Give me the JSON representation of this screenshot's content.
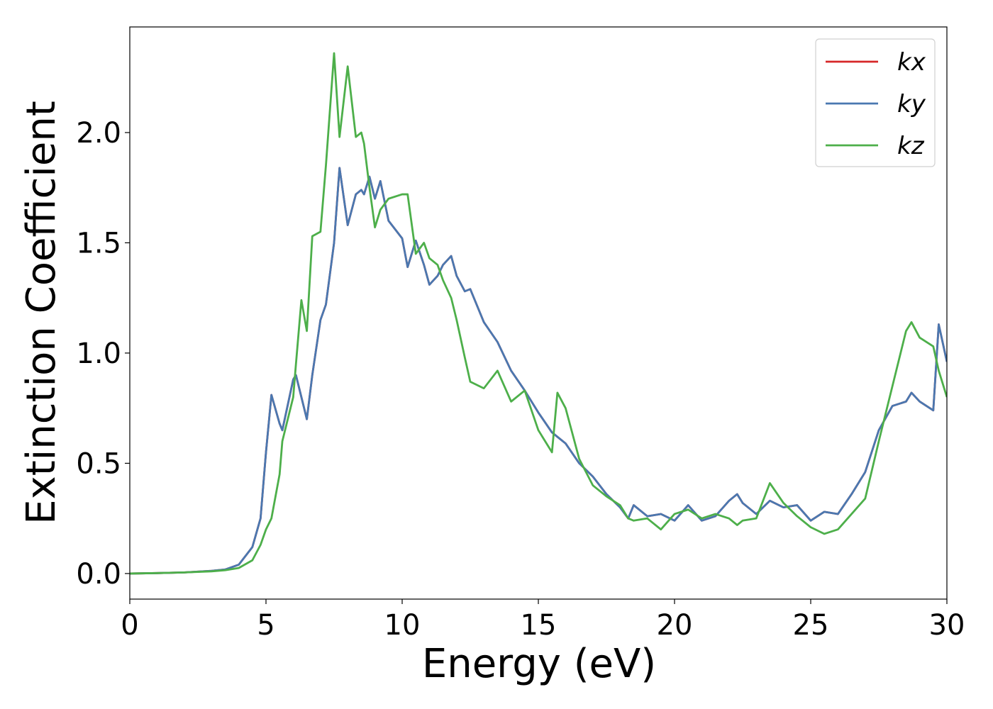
{
  "chart_data": {
    "type": "line",
    "xlabel": "Energy (eV)",
    "ylabel": "Extinction Coefficient",
    "x": [
      0,
      1,
      2,
      3,
      3.5,
      4,
      4.5,
      4.8,
      5,
      5.2,
      5.5,
      5.6,
      6,
      6.1,
      6.3,
      6.5,
      6.7,
      7,
      7.2,
      7.5,
      7.7,
      8,
      8.3,
      8.5,
      8.6,
      8.8,
      9,
      9.2,
      9.5,
      10,
      10.2,
      10.5,
      10.8,
      11,
      11.3,
      11.5,
      11.8,
      12,
      12.3,
      12.5,
      13,
      13.5,
      14,
      14.5,
      15,
      15.5,
      15.7,
      16,
      16.5,
      17,
      17.5,
      18,
      18.3,
      18.5,
      19,
      19.5,
      20,
      20.5,
      21,
      21.5,
      22,
      22.3,
      22.5,
      23,
      23.5,
      24,
      24.5,
      25,
      25.5,
      26,
      26.5,
      27,
      27.5,
      28,
      28.5,
      28.7,
      29,
      29.5,
      29.7,
      30
    ],
    "series": [
      {
        "name": "kx",
        "color": "#d62728",
        "values": [
          0,
          0.002,
          0.005,
          0.012,
          0.018,
          0.04,
          0.12,
          0.25,
          0.55,
          0.81,
          0.68,
          0.65,
          0.88,
          0.9,
          0.8,
          0.7,
          0.9,
          1.15,
          1.22,
          1.5,
          1.84,
          1.58,
          1.72,
          1.74,
          1.72,
          1.8,
          1.7,
          1.78,
          1.6,
          1.52,
          1.39,
          1.51,
          1.4,
          1.31,
          1.35,
          1.4,
          1.44,
          1.35,
          1.28,
          1.29,
          1.14,
          1.05,
          0.92,
          0.83,
          0.73,
          0.64,
          0.62,
          0.59,
          0.5,
          0.44,
          0.36,
          0.3,
          0.25,
          0.31,
          0.26,
          0.27,
          0.24,
          0.31,
          0.24,
          0.26,
          0.33,
          0.36,
          0.32,
          0.27,
          0.33,
          0.3,
          0.31,
          0.24,
          0.28,
          0.27,
          0.36,
          0.46,
          0.65,
          0.76,
          0.78,
          0.82,
          0.78,
          0.74,
          1.13,
          0.96
        ]
      },
      {
        "name": "ky",
        "color": "#4a78b0",
        "values": [
          0,
          0.002,
          0.005,
          0.012,
          0.018,
          0.04,
          0.12,
          0.25,
          0.55,
          0.81,
          0.68,
          0.65,
          0.88,
          0.9,
          0.8,
          0.7,
          0.9,
          1.15,
          1.22,
          1.5,
          1.84,
          1.58,
          1.72,
          1.74,
          1.72,
          1.8,
          1.7,
          1.78,
          1.6,
          1.52,
          1.39,
          1.51,
          1.4,
          1.31,
          1.35,
          1.4,
          1.44,
          1.35,
          1.28,
          1.29,
          1.14,
          1.05,
          0.92,
          0.83,
          0.73,
          0.64,
          0.62,
          0.59,
          0.5,
          0.44,
          0.36,
          0.3,
          0.25,
          0.31,
          0.26,
          0.27,
          0.24,
          0.31,
          0.24,
          0.26,
          0.33,
          0.36,
          0.32,
          0.27,
          0.33,
          0.3,
          0.31,
          0.24,
          0.28,
          0.27,
          0.36,
          0.46,
          0.65,
          0.76,
          0.78,
          0.82,
          0.78,
          0.74,
          1.13,
          0.96
        ]
      },
      {
        "name": "kz",
        "color": "#4daf4a",
        "values": [
          0,
          0.002,
          0.005,
          0.01,
          0.015,
          0.025,
          0.06,
          0.13,
          0.2,
          0.25,
          0.45,
          0.6,
          0.8,
          0.95,
          1.24,
          1.1,
          1.53,
          1.55,
          1.85,
          2.36,
          1.98,
          2.3,
          1.98,
          2.0,
          1.95,
          1.75,
          1.57,
          1.65,
          1.7,
          1.72,
          1.72,
          1.45,
          1.5,
          1.43,
          1.4,
          1.33,
          1.25,
          1.15,
          0.98,
          0.87,
          0.84,
          0.92,
          0.78,
          0.83,
          0.65,
          0.55,
          0.82,
          0.75,
          0.52,
          0.4,
          0.35,
          0.31,
          0.25,
          0.24,
          0.25,
          0.2,
          0.27,
          0.29,
          0.25,
          0.27,
          0.25,
          0.22,
          0.24,
          0.25,
          0.41,
          0.32,
          0.26,
          0.21,
          0.18,
          0.2,
          0.27,
          0.34,
          0.6,
          0.85,
          1.1,
          1.14,
          1.07,
          1.03,
          0.92,
          0.8
        ]
      }
    ],
    "xlim": [
      0,
      30
    ],
    "xticks": [
      0,
      5,
      10,
      15,
      20,
      25,
      30
    ],
    "ylim": [
      -0.116,
      2.479
    ],
    "yticks": [
      {
        "value": 0,
        "label": "0.0"
      },
      {
        "value": 0.5,
        "label": "0.5"
      },
      {
        "value": 1,
        "label": "1.0"
      },
      {
        "value": 1.5,
        "label": "1.5"
      },
      {
        "value": 2,
        "label": "2.0"
      }
    ],
    "legend": "upper right",
    "grid": false
  }
}
